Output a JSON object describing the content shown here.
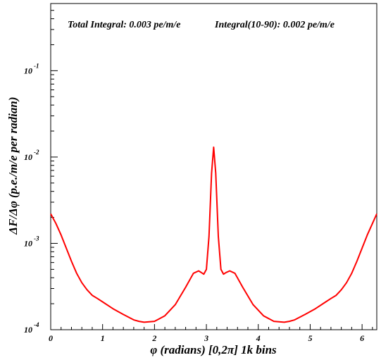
{
  "chart_data": {
    "type": "line",
    "annotations": {
      "total_integral": "Total Integral: 0.003 pe/m/e",
      "integral_10_90": "Integral(10-90): 0.002 pe/m/e"
    },
    "xlabel": "φ (radians) [0,2π] 1k bins",
    "ylabel": "ΔF/Δφ (p.e./m/e per radian)",
    "xlim": [
      0,
      6.2832
    ],
    "ylim": [
      0.0001,
      0.6
    ],
    "yscale": "log",
    "x_ticks": [
      {
        "value": 0,
        "label": "0"
      },
      {
        "value": 1,
        "label": "1"
      },
      {
        "value": 2,
        "label": "2"
      },
      {
        "value": 3,
        "label": "3"
      },
      {
        "value": 4,
        "label": "4"
      },
      {
        "value": 5,
        "label": "5"
      },
      {
        "value": 6,
        "label": "6"
      }
    ],
    "y_ticks": [
      {
        "value": 0.0001,
        "base": "10",
        "exp": "-4"
      },
      {
        "value": 0.001,
        "base": "10",
        "exp": "-3"
      },
      {
        "value": 0.01,
        "base": "10",
        "exp": "-2"
      },
      {
        "value": 0.1,
        "base": "10",
        "exp": "-1"
      }
    ],
    "series": [
      {
        "color": "#ff0000",
        "x": [
          0,
          0.1,
          0.2,
          0.3,
          0.4,
          0.5,
          0.6,
          0.7,
          0.8,
          0.9,
          1.0,
          1.2,
          1.4,
          1.6,
          1.7,
          1.8,
          2.0,
          2.2,
          2.4,
          2.6,
          2.75,
          2.85,
          2.9,
          2.95,
          3.0,
          3.05,
          3.1,
          3.14,
          3.18,
          3.23,
          3.28,
          3.33,
          3.38,
          3.45,
          3.55,
          3.7,
          3.9,
          4.1,
          4.3,
          4.5,
          4.6,
          4.7,
          4.9,
          5.1,
          5.3,
          5.4,
          5.5,
          5.6,
          5.7,
          5.8,
          5.9,
          6.0,
          6.1,
          6.2,
          6.2832
        ],
        "y": [
          0.0022,
          0.0017,
          0.00125,
          0.00088,
          0.00062,
          0.00045,
          0.00035,
          0.00029,
          0.00025,
          0.00023,
          0.00021,
          0.000175,
          0.00015,
          0.00013,
          0.000125,
          0.000122,
          0.000125,
          0.000145,
          0.000195,
          0.00031,
          0.00045,
          0.00048,
          0.00046,
          0.00044,
          0.0005,
          0.0012,
          0.0065,
          0.013,
          0.0065,
          0.0012,
          0.0005,
          0.00044,
          0.00046,
          0.00048,
          0.00045,
          0.00031,
          0.000195,
          0.000145,
          0.000125,
          0.000122,
          0.000125,
          0.00013,
          0.00015,
          0.000175,
          0.00021,
          0.00023,
          0.00025,
          0.00029,
          0.00035,
          0.00045,
          0.00062,
          0.00088,
          0.00125,
          0.0017,
          0.0022
        ]
      }
    ]
  }
}
